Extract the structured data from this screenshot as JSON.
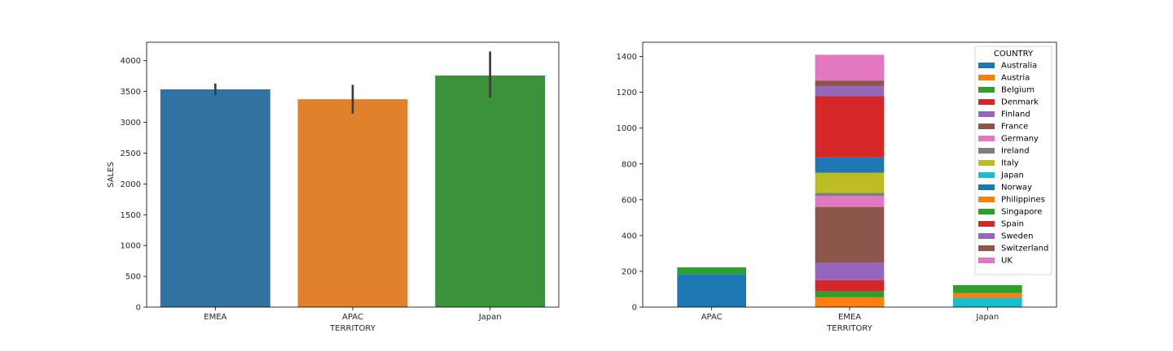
{
  "chart_data": [
    {
      "type": "bar",
      "xlabel": "TERRITORY",
      "ylabel": "SALES",
      "categories": [
        "EMEA",
        "APAC",
        "Japan"
      ],
      "values": [
        3535,
        3375,
        3760
      ],
      "error_low": [
        3440,
        3140,
        3400
      ],
      "error_high": [
        3630,
        3610,
        4150
      ],
      "colors": [
        "#3274a1",
        "#e1812c",
        "#3a923a"
      ],
      "ylim": [
        0,
        4300
      ],
      "yticks": [
        0,
        500,
        1000,
        1500,
        2000,
        2500,
        3000,
        3500,
        4000
      ],
      "grid": false
    },
    {
      "type": "bar",
      "stacked": true,
      "xlabel": "TERRITORY",
      "ylabel": "",
      "categories": [
        "APAC",
        "EMEA",
        "Japan"
      ],
      "ylim": [
        0,
        1480
      ],
      "yticks": [
        0,
        200,
        400,
        600,
        800,
        1000,
        1200,
        1400
      ],
      "grid": false,
      "legend": {
        "title": "COUNTRY",
        "placement": "top-right"
      },
      "series": [
        {
          "name": "Australia",
          "color": "#1f77b4",
          "values": [
            185,
            0,
            0
          ]
        },
        {
          "name": "Austria",
          "color": "#ff7f0e",
          "values": [
            0,
            55,
            0
          ]
        },
        {
          "name": "Belgium",
          "color": "#2ca02c",
          "values": [
            0,
            33,
            0
          ]
        },
        {
          "name": "Denmark",
          "color": "#d62728",
          "values": [
            0,
            63,
            0
          ]
        },
        {
          "name": "Finland",
          "color": "#9467bd",
          "values": [
            0,
            97,
            0
          ]
        },
        {
          "name": "France",
          "color": "#8c564b",
          "values": [
            0,
            312,
            0
          ]
        },
        {
          "name": "Germany",
          "color": "#e377c2",
          "values": [
            0,
            62,
            0
          ]
        },
        {
          "name": "Ireland",
          "color": "#7f7f7f",
          "values": [
            0,
            16,
            0
          ]
        },
        {
          "name": "Italy",
          "color": "#bcbd22",
          "values": [
            0,
            113,
            0
          ]
        },
        {
          "name": "Japan",
          "color": "#17becf",
          "values": [
            0,
            0,
            52
          ]
        },
        {
          "name": "Norway",
          "color": "#1f77b4",
          "values": [
            0,
            85,
            0
          ]
        },
        {
          "name": "Philippines",
          "color": "#ff7f0e",
          "values": [
            0,
            0,
            26
          ]
        },
        {
          "name": "Singapore",
          "color": "#2ca02c",
          "values": [
            37,
            0,
            45
          ]
        },
        {
          "name": "Spain",
          "color": "#d62728",
          "values": [
            0,
            342,
            0
          ]
        },
        {
          "name": "Sweden",
          "color": "#9467bd",
          "values": [
            0,
            57,
            0
          ]
        },
        {
          "name": "Switzerland",
          "color": "#8c564b",
          "values": [
            0,
            31,
            0
          ]
        },
        {
          "name": "UK",
          "color": "#e377c2",
          "values": [
            0,
            144,
            0
          ]
        }
      ]
    }
  ]
}
